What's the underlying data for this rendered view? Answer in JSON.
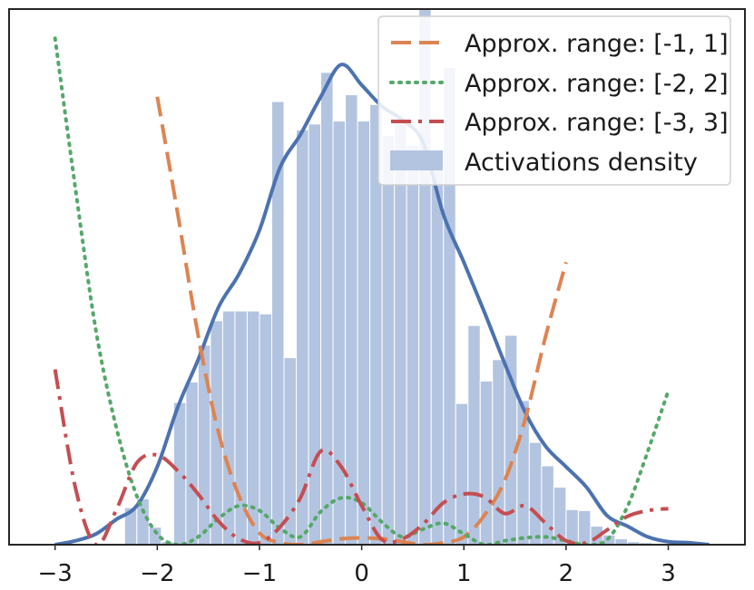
{
  "chart_data": {
    "type": "bar",
    "title": "",
    "xlabel": "",
    "ylabel": "",
    "xlim": [
      -3.45,
      3.75
    ],
    "ylim": [
      0,
      0.55
    ],
    "xticks": [
      -3,
      -2,
      -1,
      0,
      1,
      2,
      3
    ],
    "xtick_labels": [
      "−3",
      "−2",
      "−1",
      "0",
      "1",
      "2",
      "3"
    ],
    "grid": false,
    "legend_position": "top-right",
    "histogram": {
      "name": "Activations density",
      "color": "#b3c4e0",
      "bin_edges": [
        -2.32,
        -2.2,
        -2.08,
        -1.96,
        -1.84,
        -1.72,
        -1.6,
        -1.48,
        -1.36,
        -1.24,
        -1.12,
        -1.0,
        -0.88,
        -0.76,
        -0.64,
        -0.52,
        -0.4,
        -0.28,
        -0.16,
        -0.04,
        0.08,
        0.2,
        0.32,
        0.44,
        0.56,
        0.68,
        0.8,
        0.92,
        1.04,
        1.16,
        1.28,
        1.4,
        1.52,
        1.64,
        1.76,
        1.88,
        2.0,
        2.12,
        2.24,
        2.36,
        2.48,
        2.6,
        2.72,
        2.84
      ],
      "values": [
        0.038,
        0.047,
        0.018,
        0.003,
        0.146,
        0.167,
        0.205,
        0.23,
        0.24,
        0.24,
        0.24,
        0.237,
        0.455,
        0.192,
        0.426,
        0.432,
        0.485,
        0.435,
        0.462,
        0.435,
        0.452,
        0.42,
        0.437,
        0.41,
        0.555,
        0.405,
        0.49,
        0.145,
        0.225,
        0.168,
        0.19,
        0.215,
        0.148,
        0.105,
        0.081,
        0.059,
        0.036,
        0.035,
        0.019,
        0.01,
        0.006,
        0.003,
        0.002
      ]
    },
    "series": [
      {
        "name": "Activations density",
        "kind": "kde",
        "color": "#4c72b0",
        "x": [
          -3.0,
          -2.8,
          -2.6,
          -2.4,
          -2.2,
          -2.0,
          -1.8,
          -1.6,
          -1.4,
          -1.2,
          -1.0,
          -0.8,
          -0.6,
          -0.4,
          -0.2,
          0.0,
          0.2,
          0.4,
          0.6,
          0.8,
          1.0,
          1.2,
          1.4,
          1.6,
          1.8,
          2.0,
          2.2,
          2.4,
          2.6,
          2.8,
          3.0,
          3.2,
          3.4
        ],
        "y": [
          0.0,
          0.004,
          0.011,
          0.026,
          0.04,
          0.08,
          0.141,
          0.19,
          0.244,
          0.278,
          0.323,
          0.387,
          0.421,
          0.46,
          0.493,
          0.472,
          0.45,
          0.436,
          0.413,
          0.339,
          0.29,
          0.239,
          0.186,
          0.136,
          0.101,
          0.08,
          0.059,
          0.03,
          0.019,
          0.008,
          0.003,
          0.002,
          0.0
        ]
      },
      {
        "name": "Approx. range: [-1, 1]",
        "kind": "line",
        "style": "dashed",
        "color": "#dd8452",
        "x": [
          -2.0,
          -1.8,
          -1.6,
          -1.4,
          -1.2,
          -1.0,
          -0.8,
          -0.6,
          -0.4,
          -0.2,
          0.0,
          0.2,
          0.4,
          0.6,
          0.8,
          1.0,
          1.2,
          1.4,
          1.6,
          1.8,
          2.0
        ],
        "y": [
          0.46,
          0.34,
          0.215,
          0.115,
          0.05,
          0.012,
          0.002,
          0.0,
          0.003,
          0.006,
          0.007,
          0.006,
          0.003,
          0.0,
          0.002,
          0.008,
          0.03,
          0.066,
          0.129,
          0.214,
          0.29
        ]
      },
      {
        "name": "Approx. range: [-2, 2]",
        "kind": "line",
        "style": "dotted",
        "color": "#55a868",
        "x": [
          -3.0,
          -2.8,
          -2.6,
          -2.4,
          -2.2,
          -2.0,
          -1.8,
          -1.6,
          -1.4,
          -1.2,
          -1.0,
          -0.8,
          -0.6,
          -0.4,
          -0.2,
          0.0,
          0.2,
          0.4,
          0.6,
          0.8,
          1.0,
          1.2,
          1.4,
          1.6,
          1.8,
          2.0,
          2.2,
          2.4,
          2.6,
          2.8,
          3.0
        ],
        "y": [
          0.52,
          0.365,
          0.22,
          0.12,
          0.05,
          0.011,
          0.0,
          0.008,
          0.027,
          0.04,
          0.035,
          0.017,
          0.008,
          0.034,
          0.048,
          0.043,
          0.023,
          0.008,
          0.016,
          0.022,
          0.011,
          0.0,
          0.004,
          0.007,
          0.008,
          0.004,
          0.0,
          0.005,
          0.039,
          0.096,
          0.158
        ]
      },
      {
        "name": "Approx. range: [-3, 3]",
        "kind": "line",
        "style": "dashdot",
        "color": "#c44e52",
        "x": [
          -3.0,
          -2.8,
          -2.6,
          -2.4,
          -2.2,
          -2.0,
          -1.8,
          -1.6,
          -1.4,
          -1.2,
          -1.0,
          -0.8,
          -0.6,
          -0.4,
          -0.2,
          0.0,
          0.2,
          0.4,
          0.6,
          0.8,
          1.0,
          1.2,
          1.4,
          1.6,
          1.8,
          2.0,
          2.2,
          2.4,
          2.6,
          2.8,
          3.0
        ],
        "y": [
          0.18,
          0.058,
          0.0,
          0.036,
          0.084,
          0.092,
          0.076,
          0.052,
          0.024,
          0.006,
          0.002,
          0.018,
          0.048,
          0.096,
          0.08,
          0.04,
          0.005,
          0.006,
          0.021,
          0.043,
          0.052,
          0.049,
          0.032,
          0.04,
          0.022,
          0.004,
          0.002,
          0.015,
          0.029,
          0.035,
          0.037
        ]
      }
    ]
  }
}
